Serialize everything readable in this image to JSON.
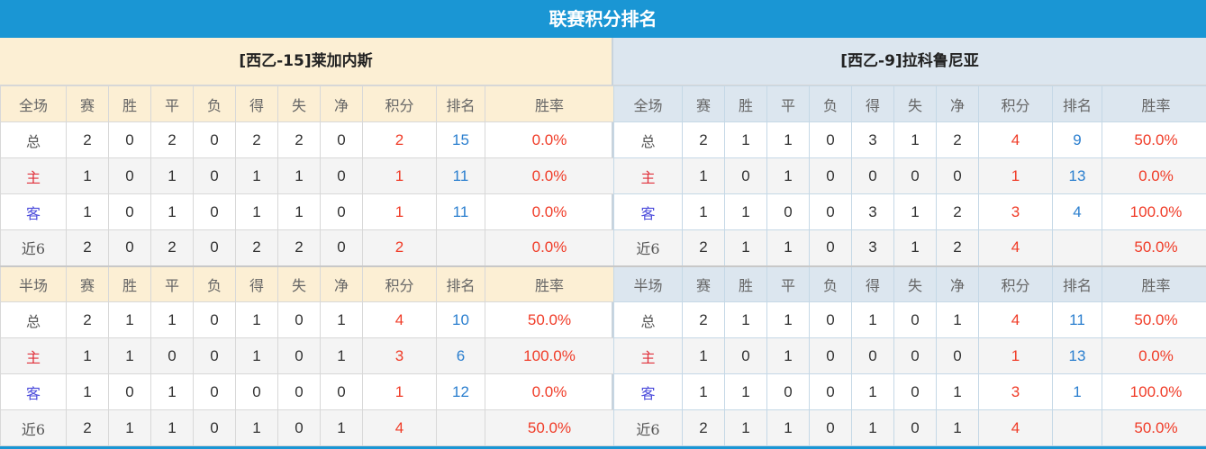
{
  "title": "联赛积分排名",
  "columns": {
    "full": [
      "全场",
      "赛",
      "胜",
      "平",
      "负",
      "得",
      "失",
      "净",
      "积分",
      "排名",
      "胜率"
    ],
    "half": [
      "半场",
      "赛",
      "胜",
      "平",
      "负",
      "得",
      "失",
      "净",
      "积分",
      "排名",
      "胜率"
    ]
  },
  "teams": [
    {
      "name": "[西乙-15]莱加内斯",
      "full": [
        [
          "总",
          "2",
          "0",
          "2",
          "0",
          "2",
          "2",
          "0",
          "2",
          "15",
          "0.0%"
        ],
        [
          "主",
          "1",
          "0",
          "1",
          "0",
          "1",
          "1",
          "0",
          "1",
          "11",
          "0.0%"
        ],
        [
          "客",
          "1",
          "0",
          "1",
          "0",
          "1",
          "1",
          "0",
          "1",
          "11",
          "0.0%"
        ],
        [
          "近6",
          "2",
          "0",
          "2",
          "0",
          "2",
          "2",
          "0",
          "2",
          "",
          "0.0%"
        ]
      ],
      "half": [
        [
          "总",
          "2",
          "1",
          "1",
          "0",
          "1",
          "0",
          "1",
          "4",
          "10",
          "50.0%"
        ],
        [
          "主",
          "1",
          "1",
          "0",
          "0",
          "1",
          "0",
          "1",
          "3",
          "6",
          "100.0%"
        ],
        [
          "客",
          "1",
          "0",
          "1",
          "0",
          "0",
          "0",
          "0",
          "1",
          "12",
          "0.0%"
        ],
        [
          "近6",
          "2",
          "1",
          "1",
          "0",
          "1",
          "0",
          "1",
          "4",
          "",
          "50.0%"
        ]
      ]
    },
    {
      "name": "[西乙-9]拉科鲁尼亚",
      "full": [
        [
          "总",
          "2",
          "1",
          "1",
          "0",
          "3",
          "1",
          "2",
          "4",
          "9",
          "50.0%"
        ],
        [
          "主",
          "1",
          "0",
          "1",
          "0",
          "0",
          "0",
          "0",
          "1",
          "13",
          "0.0%"
        ],
        [
          "客",
          "1",
          "1",
          "0",
          "0",
          "3",
          "1",
          "2",
          "3",
          "4",
          "100.0%"
        ],
        [
          "近6",
          "2",
          "1",
          "1",
          "0",
          "3",
          "1",
          "2",
          "4",
          "",
          "50.0%"
        ]
      ],
      "half": [
        [
          "总",
          "2",
          "1",
          "1",
          "0",
          "1",
          "0",
          "1",
          "4",
          "11",
          "50.0%"
        ],
        [
          "主",
          "1",
          "0",
          "1",
          "0",
          "0",
          "0",
          "0",
          "1",
          "13",
          "0.0%"
        ],
        [
          "客",
          "1",
          "1",
          "0",
          "0",
          "1",
          "0",
          "1",
          "3",
          "1",
          "100.0%"
        ],
        [
          "近6",
          "2",
          "1",
          "1",
          "0",
          "1",
          "0",
          "1",
          "4",
          "",
          "50.0%"
        ]
      ]
    }
  ],
  "colors": {
    "title_bar": "#1a96d4",
    "points": "#f03c28",
    "rank": "#2b7fcf",
    "home": "#e0303a",
    "away": "#4a4adb"
  }
}
